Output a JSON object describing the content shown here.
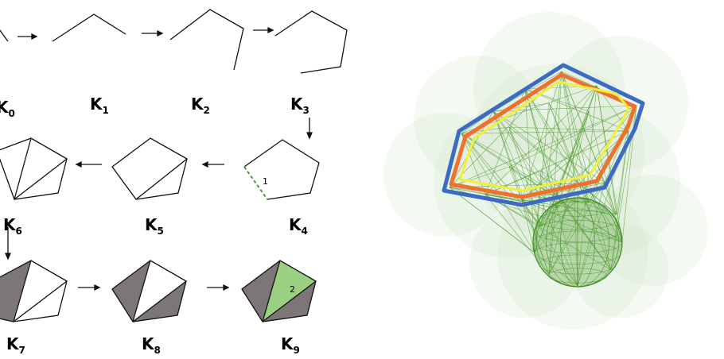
{
  "filtration": {
    "stages": [
      {
        "name": "K",
        "index": "0"
      },
      {
        "name": "K",
        "index": "1"
      },
      {
        "name": "K",
        "index": "2"
      },
      {
        "name": "K",
        "index": "3"
      },
      {
        "name": "K",
        "index": "4"
      },
      {
        "name": "K",
        "index": "5"
      },
      {
        "name": "K",
        "index": "6"
      },
      {
        "name": "K",
        "index": "7"
      },
      {
        "name": "K",
        "index": "8"
      },
      {
        "name": "K",
        "index": "9"
      }
    ],
    "annotations": {
      "edge_number": "1",
      "triangle_number": "2"
    }
  },
  "colors": {
    "ink": "#111111",
    "dashed_edge": "#4c9a3a",
    "gray_face": "#7d7676",
    "green_face": "#9bcf82",
    "mesh_green": "#4f9a2f",
    "halo_green": "#dfecd6",
    "outer_loop": "#3b6bc4",
    "middle_loop": "#f07030",
    "inner_loop": "#f2ef3a"
  }
}
